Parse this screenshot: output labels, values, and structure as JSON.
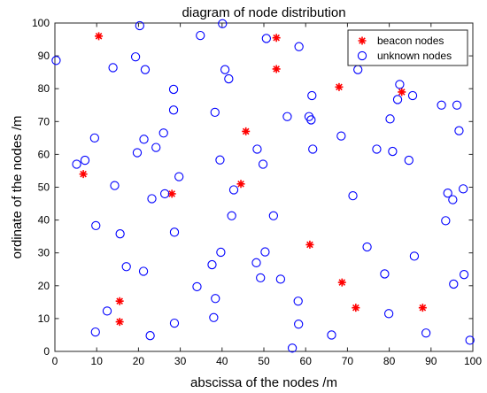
{
  "chart_data": {
    "type": "scatter",
    "title": "diagram of node distribution",
    "xlabel": "abscissa of the nodes /m",
    "ylabel": "ordinate of the nodes /m",
    "xlim": [
      0,
      100
    ],
    "ylim": [
      0,
      100
    ],
    "xticks": [
      "0",
      "10",
      "20",
      "30",
      "40",
      "50",
      "60",
      "70",
      "80",
      "90",
      "100"
    ],
    "yticks": [
      "0",
      "10",
      "20",
      "30",
      "40",
      "50",
      "60",
      "70",
      "80",
      "90",
      "100"
    ],
    "grid": false,
    "legend_position": "top-right",
    "series": [
      {
        "name": "beacon nodes",
        "marker": "star",
        "color": "#ff0000",
        "points": [
          [
            10.5,
            96
          ],
          [
            53,
            95.5
          ],
          [
            53,
            86
          ],
          [
            68,
            80.5
          ],
          [
            83,
            79
          ],
          [
            45.7,
            67
          ],
          [
            6.8,
            54
          ],
          [
            28,
            48
          ],
          [
            44.5,
            51
          ],
          [
            61,
            32.5
          ],
          [
            68.7,
            21
          ],
          [
            15.5,
            15.3
          ],
          [
            15.5,
            9
          ],
          [
            72,
            13.3
          ],
          [
            88,
            13.3
          ]
        ]
      },
      {
        "name": "unknown nodes",
        "marker": "circle",
        "color": "#0000ff",
        "points": [
          [
            0.3,
            88.6
          ],
          [
            20.3,
            99.2
          ],
          [
            34.8,
            96.2
          ],
          [
            40.1,
            99.8
          ],
          [
            50.6,
            95.3
          ],
          [
            58.4,
            92.8
          ],
          [
            13.9,
            86.4
          ],
          [
            19.3,
            89.7
          ],
          [
            21.6,
            85.8
          ],
          [
            40.7,
            85.8
          ],
          [
            41.6,
            83
          ],
          [
            72.5,
            85.8
          ],
          [
            82.5,
            81.3
          ],
          [
            85.6,
            77.9
          ],
          [
            28.4,
            79.8
          ],
          [
            61.5,
            77.9
          ],
          [
            82,
            76.7
          ],
          [
            92.5,
            75
          ],
          [
            96.2,
            75
          ],
          [
            28.4,
            73.5
          ],
          [
            38.3,
            72.8
          ],
          [
            55.6,
            71.5
          ],
          [
            60.8,
            71.5
          ],
          [
            61.3,
            70.5
          ],
          [
            80.2,
            70.8
          ],
          [
            26,
            66.5
          ],
          [
            68.5,
            65.6
          ],
          [
            96.7,
            67.2
          ],
          [
            9.5,
            65
          ],
          [
            21.3,
            64.6
          ],
          [
            24.2,
            62.1
          ],
          [
            48.4,
            61.6
          ],
          [
            61.7,
            61.6
          ],
          [
            77,
            61.6
          ],
          [
            80.8,
            60.9
          ],
          [
            19.7,
            60.5
          ],
          [
            7.2,
            58.2
          ],
          [
            5.2,
            57
          ],
          [
            39.5,
            58.3
          ],
          [
            49.8,
            57
          ],
          [
            84.7,
            58.2
          ],
          [
            29.7,
            53.2
          ],
          [
            14.3,
            50.5
          ],
          [
            26.3,
            48
          ],
          [
            23.2,
            46.5
          ],
          [
            42.8,
            49.2
          ],
          [
            71.3,
            47.4
          ],
          [
            94,
            48.2
          ],
          [
            95.2,
            46.2
          ],
          [
            97.7,
            49.5
          ],
          [
            42.3,
            41.3
          ],
          [
            52.3,
            41.3
          ],
          [
            9.8,
            38.3
          ],
          [
            93.5,
            39.8
          ],
          [
            15.6,
            35.8
          ],
          [
            28.6,
            36.3
          ],
          [
            74.7,
            31.8
          ],
          [
            39.7,
            30.2
          ],
          [
            50.3,
            30.3
          ],
          [
            86,
            29
          ],
          [
            17.1,
            25.8
          ],
          [
            37.6,
            26.4
          ],
          [
            48.2,
            27
          ],
          [
            21.2,
            24.4
          ],
          [
            97.9,
            23.4
          ],
          [
            49.2,
            22.4
          ],
          [
            54,
            22
          ],
          [
            78.9,
            23.6
          ],
          [
            34,
            19.7
          ],
          [
            95.4,
            20.5
          ],
          [
            12.5,
            12.3
          ],
          [
            38.4,
            16.1
          ],
          [
            58.2,
            15.3
          ],
          [
            38,
            10.3
          ],
          [
            79.9,
            11.5
          ],
          [
            28.6,
            8.6
          ],
          [
            58.3,
            8.3
          ],
          [
            9.7,
            5.9
          ],
          [
            22.8,
            4.8
          ],
          [
            66.2,
            5
          ],
          [
            88.8,
            5.6
          ],
          [
            56.8,
            1
          ],
          [
            99.3,
            3.4
          ]
        ]
      }
    ]
  }
}
